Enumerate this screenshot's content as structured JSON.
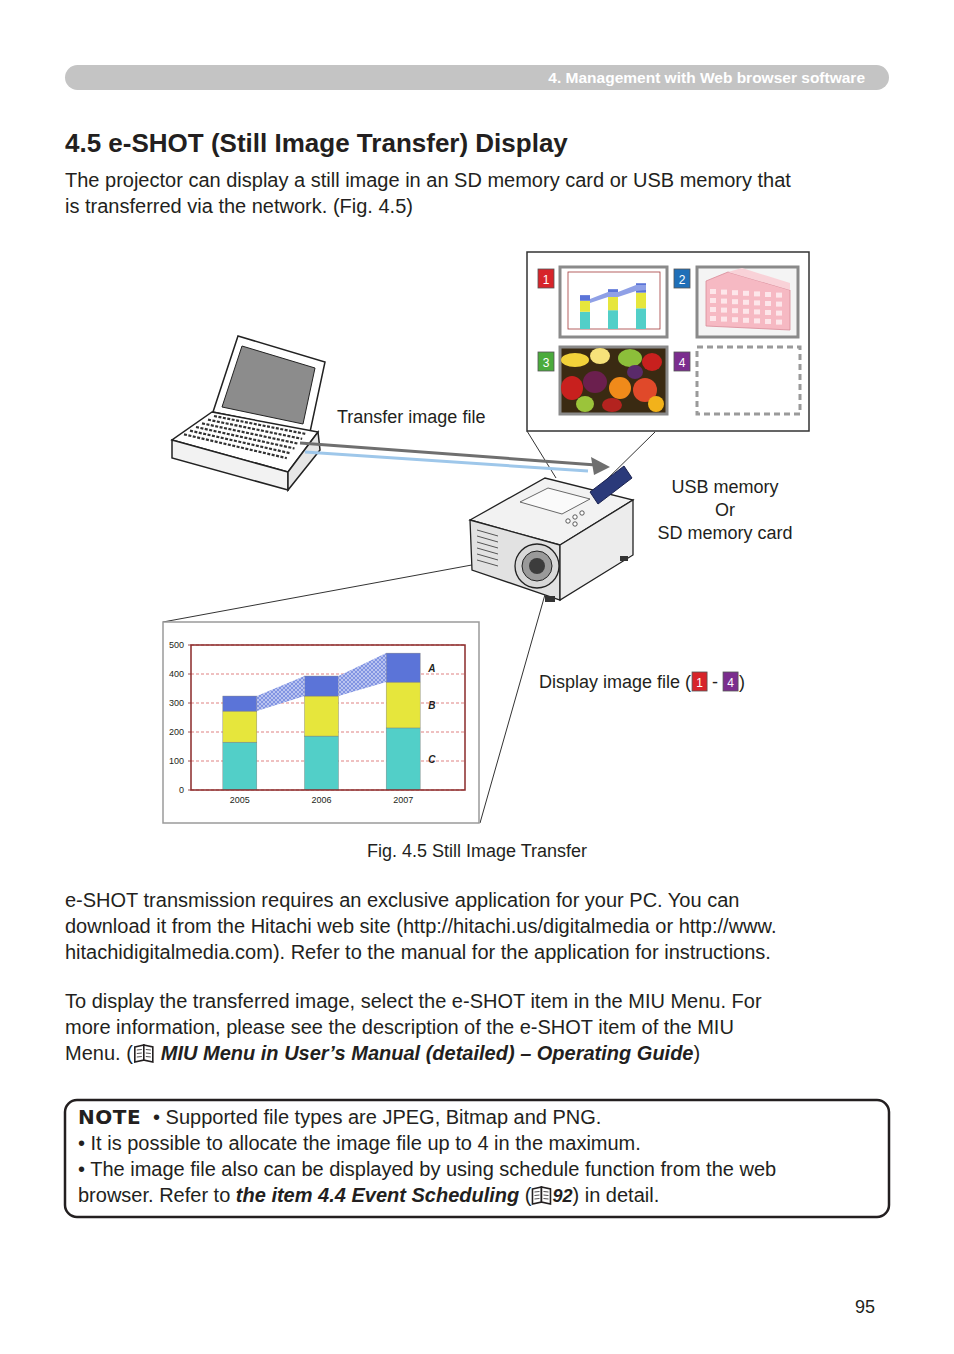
{
  "header": {
    "section": "4. Management with Web browser software"
  },
  "title": "4.5 e-SHOT (Still Image Transfer) Display",
  "intro": {
    "lines": [
      "The projector can display a still image in an SD memory card or USB memory that",
      "is transferred via the network. (Fig. 4.5)"
    ]
  },
  "figure": {
    "slots": [
      "1",
      "2",
      "3",
      "4"
    ],
    "transfer_label": "Transfer image file",
    "storage_label": [
      "USB memory",
      "Or",
      "SD memory card"
    ],
    "display_label": {
      "before": "Display image file (",
      "separator": " - ",
      "after": ")"
    },
    "caption": "Fig. 4.5 Still Image Transfer"
  },
  "chart_data": {
    "type": "bar",
    "stacked": true,
    "categories": [
      "2005",
      "2006",
      "2007"
    ],
    "series": [
      {
        "name": "C",
        "color": "#52cfc8",
        "values": [
          165,
          186,
          214
        ]
      },
      {
        "name": "B",
        "color": "#e6e63c",
        "values": [
          107,
          138,
          158
        ]
      },
      {
        "name": "A",
        "color": "#5b74d8",
        "values": [
          52,
          69,
          100
        ]
      }
    ],
    "ylim": [
      0,
      500
    ],
    "yticks": [
      0,
      100,
      200,
      300,
      400,
      500
    ],
    "grid": true,
    "legend": "right"
  },
  "body": {
    "download": {
      "lines": [
        "e-SHOT transmission requires an exclusive application for your PC. You can",
        "download it from the Hitachi web site (http://hitachi.us/digitalmedia or http://www.",
        "hitachidigitalmedia.com). Refer to the manual for the application for instructions."
      ]
    },
    "menu": {
      "lines": [
        "To display the transferred image, select the e-SHOT item in the MIU Menu. For",
        "more information, please see the description of the e-SHOT item of the MIU"
      ],
      "reference": {
        "before": "Menu. (",
        "text": "MIU Menu in User’s Manual (detailed) – Operating Guide",
        "after": ")"
      }
    }
  },
  "note": {
    "label": "NOTE",
    "items": [
      "• Supported file types are JPEG, Bitmap and PNG.",
      "• It is possible to allocate the image file up to 4 in the maximum.",
      "• The image file also can be displayed by using schedule function from the web"
    ],
    "reference": {
      "before": "browser. Refer to ",
      "text": "the item 4.4 Event Scheduling",
      "middle": " (",
      "page": "92",
      "after": ") in detail."
    }
  },
  "page_number": "95"
}
